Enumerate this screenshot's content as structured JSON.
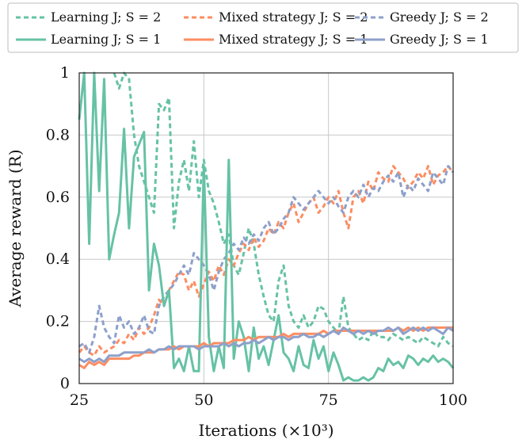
{
  "chart_data": {
    "type": "line",
    "xlabel": "Iterations (×10³)",
    "ylabel": "Average reward (R)",
    "xlim": [
      25,
      100
    ],
    "ylim": [
      0,
      1
    ],
    "xticks": [
      25,
      50,
      75,
      100
    ],
    "yticks": [
      0,
      0.2,
      0.4,
      0.6,
      0.8,
      1
    ],
    "ytick_labels": [
      "0",
      "0.2",
      "0.4",
      "0.6",
      "0.8",
      "1"
    ],
    "grid": true,
    "legend_position": "top",
    "colors": {
      "learning": "#66c2a5",
      "mixed": "#fc8d62",
      "greedy": "#8da0cb"
    },
    "series": [
      {
        "name": "Learning J; S = 2",
        "color": "#66c2a5",
        "dash": "dashed",
        "x": [
          32,
          33,
          34,
          35,
          36,
          37,
          38,
          39,
          40,
          41,
          42,
          43,
          44,
          45,
          46,
          47,
          48,
          49,
          50,
          51,
          52,
          53,
          54,
          55,
          56,
          57,
          58,
          59,
          60,
          61,
          62,
          63,
          64,
          65,
          66,
          67,
          68,
          69,
          70,
          71,
          72,
          73,
          74,
          75,
          76,
          77,
          78,
          79,
          80,
          81,
          82,
          83,
          84,
          85,
          86,
          87,
          88,
          89,
          90,
          91,
          92,
          93,
          94,
          95,
          96,
          97,
          98,
          99,
          100
        ],
        "y": [
          1.0,
          0.95,
          1.0,
          0.98,
          0.8,
          0.7,
          0.65,
          0.6,
          0.55,
          0.9,
          0.88,
          0.92,
          0.5,
          0.65,
          0.72,
          0.62,
          0.78,
          0.6,
          0.72,
          0.62,
          0.58,
          0.52,
          0.45,
          0.48,
          0.38,
          0.35,
          0.42,
          0.5,
          0.45,
          0.35,
          0.28,
          0.22,
          0.2,
          0.33,
          0.38,
          0.25,
          0.2,
          0.18,
          0.22,
          0.18,
          0.2,
          0.25,
          0.24,
          0.2,
          0.18,
          0.16,
          0.28,
          0.18,
          0.16,
          0.14,
          0.15,
          0.14,
          0.17,
          0.15,
          0.15,
          0.14,
          0.16,
          0.15,
          0.14,
          0.15,
          0.14,
          0.13,
          0.15,
          0.14,
          0.13,
          0.12,
          0.15,
          0.13,
          0.12
        ]
      },
      {
        "name": "Mixed strategy J; S = 2",
        "color": "#fc8d62",
        "dash": "dashed",
        "x": [
          25,
          26,
          27,
          28,
          29,
          30,
          31,
          32,
          33,
          34,
          35,
          36,
          37,
          38,
          39,
          40,
          41,
          42,
          43,
          44,
          45,
          46,
          47,
          48,
          49,
          50,
          51,
          52,
          53,
          54,
          55,
          56,
          57,
          58,
          59,
          60,
          61,
          62,
          63,
          64,
          65,
          66,
          67,
          68,
          69,
          70,
          71,
          72,
          73,
          74,
          75,
          76,
          77,
          78,
          79,
          80,
          81,
          82,
          83,
          84,
          85,
          86,
          87,
          88,
          89,
          90,
          91,
          92,
          93,
          94,
          95,
          96,
          97,
          98,
          99,
          100
        ],
        "y": [
          0.1,
          0.12,
          0.1,
          0.09,
          0.12,
          0.1,
          0.11,
          0.12,
          0.14,
          0.13,
          0.16,
          0.14,
          0.18,
          0.16,
          0.18,
          0.22,
          0.27,
          0.25,
          0.3,
          0.33,
          0.36,
          0.35,
          0.3,
          0.33,
          0.28,
          0.32,
          0.36,
          0.33,
          0.38,
          0.35,
          0.4,
          0.38,
          0.42,
          0.45,
          0.43,
          0.47,
          0.44,
          0.46,
          0.5,
          0.48,
          0.52,
          0.5,
          0.55,
          0.58,
          0.52,
          0.55,
          0.58,
          0.6,
          0.55,
          0.57,
          0.6,
          0.58,
          0.62,
          0.55,
          0.5,
          0.6,
          0.62,
          0.58,
          0.65,
          0.62,
          0.68,
          0.66,
          0.65,
          0.7,
          0.68,
          0.66,
          0.63,
          0.65,
          0.68,
          0.66,
          0.7,
          0.64,
          0.67,
          0.68,
          0.7,
          0.68
        ]
      },
      {
        "name": "Greedy J; S = 2",
        "color": "#8da0cb",
        "dash": "dashed",
        "x": [
          25,
          26,
          27,
          28,
          29,
          30,
          31,
          32,
          33,
          34,
          35,
          36,
          37,
          38,
          39,
          40,
          41,
          42,
          43,
          44,
          45,
          46,
          47,
          48,
          49,
          50,
          51,
          52,
          53,
          54,
          55,
          56,
          57,
          58,
          59,
          60,
          61,
          62,
          63,
          64,
          65,
          66,
          67,
          68,
          69,
          70,
          71,
          72,
          73,
          74,
          75,
          76,
          77,
          78,
          79,
          80,
          81,
          82,
          83,
          84,
          85,
          86,
          87,
          88,
          89,
          90,
          91,
          92,
          93,
          94,
          95,
          96,
          97,
          98,
          99,
          100
        ],
        "y": [
          0.12,
          0.13,
          0.1,
          0.15,
          0.25,
          0.18,
          0.15,
          0.13,
          0.22,
          0.18,
          0.2,
          0.16,
          0.18,
          0.22,
          0.17,
          0.16,
          0.25,
          0.28,
          0.3,
          0.32,
          0.35,
          0.38,
          0.35,
          0.42,
          0.4,
          0.38,
          0.35,
          0.3,
          0.36,
          0.4,
          0.42,
          0.45,
          0.43,
          0.47,
          0.45,
          0.48,
          0.46,
          0.5,
          0.52,
          0.48,
          0.5,
          0.53,
          0.55,
          0.6,
          0.58,
          0.56,
          0.58,
          0.6,
          0.62,
          0.6,
          0.58,
          0.6,
          0.57,
          0.55,
          0.6,
          0.62,
          0.6,
          0.64,
          0.6,
          0.63,
          0.62,
          0.65,
          0.67,
          0.65,
          0.68,
          0.6,
          0.64,
          0.62,
          0.66,
          0.64,
          0.62,
          0.68,
          0.66,
          0.64,
          0.7,
          0.68
        ]
      },
      {
        "name": "Learning J; S = 1",
        "color": "#66c2a5",
        "dash": "solid",
        "x": [
          25,
          26,
          27,
          28,
          29,
          30,
          31,
          32,
          33,
          34,
          35,
          36,
          37,
          38,
          39,
          40,
          41,
          42,
          43,
          44,
          45,
          46,
          47,
          48,
          49,
          50,
          51,
          52,
          53,
          54,
          55,
          56,
          57,
          58,
          59,
          60,
          61,
          62,
          63,
          64,
          65,
          66,
          67,
          68,
          69,
          70,
          71,
          72,
          73,
          74,
          75,
          76,
          77,
          78,
          79,
          80,
          81,
          82,
          83,
          84,
          85,
          86,
          87,
          88,
          89,
          90,
          91,
          92,
          93,
          94,
          95,
          96,
          97,
          98,
          99,
          100
        ],
        "y": [
          0.85,
          1.0,
          0.45,
          1.0,
          0.62,
          0.98,
          0.4,
          0.48,
          0.55,
          0.82,
          0.5,
          0.73,
          0.77,
          0.81,
          0.3,
          0.45,
          0.38,
          0.25,
          0.3,
          0.05,
          0.08,
          0.04,
          0.12,
          0.04,
          0.04,
          0.7,
          0.15,
          0.04,
          0.12,
          0.05,
          0.72,
          0.08,
          0.2,
          0.15,
          0.04,
          0.18,
          0.08,
          0.12,
          0.06,
          0.14,
          0.22,
          0.1,
          0.08,
          0.04,
          0.12,
          0.06,
          0.05,
          0.14,
          0.08,
          0.12,
          0.04,
          0.1,
          0.06,
          0.01,
          0.02,
          0.01,
          0.01,
          0.02,
          0.01,
          0.02,
          0.05,
          0.04,
          0.08,
          0.06,
          0.07,
          0.05,
          0.09,
          0.08,
          0.06,
          0.08,
          0.07,
          0.09,
          0.07,
          0.08,
          0.07,
          0.05
        ]
      },
      {
        "name": "Mixed strategy J; S = 1",
        "color": "#fc8d62",
        "dash": "solid",
        "x": [
          25,
          26,
          27,
          28,
          29,
          30,
          31,
          32,
          33,
          34,
          35,
          36,
          37,
          38,
          39,
          40,
          41,
          42,
          43,
          44,
          45,
          46,
          47,
          48,
          49,
          50,
          51,
          52,
          53,
          54,
          55,
          56,
          57,
          58,
          59,
          60,
          61,
          62,
          63,
          64,
          65,
          66,
          67,
          68,
          69,
          70,
          71,
          72,
          73,
          74,
          75,
          76,
          77,
          78,
          79,
          80,
          81,
          82,
          83,
          84,
          85,
          86,
          87,
          88,
          89,
          90,
          91,
          92,
          93,
          94,
          95,
          96,
          97,
          98,
          99,
          100
        ],
        "y": [
          0.06,
          0.05,
          0.07,
          0.06,
          0.07,
          0.06,
          0.08,
          0.08,
          0.08,
          0.08,
          0.08,
          0.09,
          0.09,
          0.1,
          0.1,
          0.1,
          0.11,
          0.11,
          0.11,
          0.12,
          0.11,
          0.12,
          0.12,
          0.12,
          0.12,
          0.13,
          0.12,
          0.13,
          0.13,
          0.13,
          0.13,
          0.14,
          0.14,
          0.14,
          0.15,
          0.14,
          0.15,
          0.15,
          0.15,
          0.15,
          0.15,
          0.16,
          0.15,
          0.16,
          0.16,
          0.16,
          0.16,
          0.16,
          0.16,
          0.17,
          0.16,
          0.17,
          0.17,
          0.17,
          0.17,
          0.17,
          0.17,
          0.17,
          0.17,
          0.17,
          0.17,
          0.17,
          0.17,
          0.17,
          0.18,
          0.17,
          0.18,
          0.17,
          0.18,
          0.17,
          0.18,
          0.18,
          0.18,
          0.18,
          0.18,
          0.18
        ]
      },
      {
        "name": "Greedy J; S = 1",
        "color": "#8da0cb",
        "dash": "solid",
        "x": [
          25,
          26,
          27,
          28,
          29,
          30,
          31,
          32,
          33,
          34,
          35,
          36,
          37,
          38,
          39,
          40,
          41,
          42,
          43,
          44,
          45,
          46,
          47,
          48,
          49,
          50,
          51,
          52,
          53,
          54,
          55,
          56,
          57,
          58,
          59,
          60,
          61,
          62,
          63,
          64,
          65,
          66,
          67,
          68,
          69,
          70,
          71,
          72,
          73,
          74,
          75,
          76,
          77,
          78,
          79,
          80,
          81,
          82,
          83,
          84,
          85,
          86,
          87,
          88,
          89,
          90,
          91,
          92,
          93,
          94,
          95,
          96,
          97,
          98,
          99,
          100
        ],
        "y": [
          0.08,
          0.07,
          0.08,
          0.07,
          0.08,
          0.07,
          0.09,
          0.09,
          0.09,
          0.1,
          0.1,
          0.1,
          0.1,
          0.1,
          0.11,
          0.1,
          0.11,
          0.11,
          0.12,
          0.11,
          0.12,
          0.12,
          0.12,
          0.12,
          0.11,
          0.12,
          0.12,
          0.12,
          0.12,
          0.13,
          0.12,
          0.13,
          0.12,
          0.13,
          0.13,
          0.14,
          0.13,
          0.14,
          0.15,
          0.14,
          0.15,
          0.15,
          0.14,
          0.15,
          0.15,
          0.16,
          0.15,
          0.15,
          0.16,
          0.15,
          0.16,
          0.17,
          0.16,
          0.18,
          0.17,
          0.16,
          0.17,
          0.16,
          0.17,
          0.16,
          0.17,
          0.17,
          0.18,
          0.17,
          0.18,
          0.16,
          0.17,
          0.18,
          0.17,
          0.18,
          0.17,
          0.18,
          0.17,
          0.16,
          0.18,
          0.17
        ]
      }
    ]
  }
}
